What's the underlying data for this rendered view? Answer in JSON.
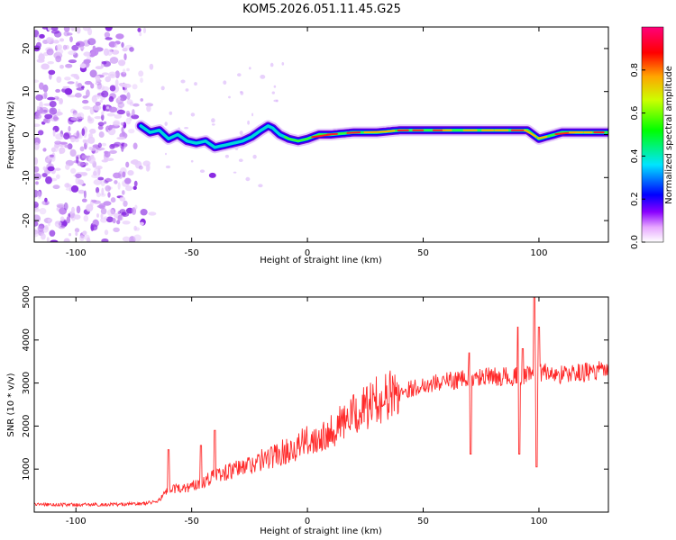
{
  "title": "KOM5.2026.051.11.45.G25",
  "chart_data": [
    {
      "type": "heatmap",
      "name": "spectrogram",
      "xlabel": "Height of straight line (km)",
      "ylabel": "Frequency (Hz)",
      "xlim": [
        -118,
        130
      ],
      "ylim": [
        -25,
        25
      ],
      "xticks": [
        -100,
        -50,
        0,
        50,
        100
      ],
      "yticks": [
        -20,
        -10,
        0,
        10,
        20
      ],
      "colorbar": {
        "label": "Normalized spectral amplitude",
        "range": [
          0,
          1
        ],
        "ticks": [
          0.0,
          0.2,
          0.4,
          0.6,
          0.8
        ]
      },
      "ridge": {
        "description": "dominant frequency ridge",
        "x": [
          -72,
          -68,
          -64,
          -60,
          -56,
          -52,
          -48,
          -44,
          -40,
          -36,
          -32,
          -28,
          -24,
          -20,
          -17,
          -15,
          -12,
          -8,
          -4,
          0,
          5,
          10,
          20,
          30,
          40,
          50,
          60,
          70,
          80,
          90,
          95,
          100,
          110,
          120,
          130
        ],
        "y": [
          2.0,
          0.5,
          1.0,
          -1.0,
          0.0,
          -1.5,
          -2.0,
          -1.5,
          -3.0,
          -2.5,
          -2.0,
          -1.5,
          -0.5,
          1.0,
          2.0,
          1.5,
          0.0,
          -1.0,
          -1.5,
          -1.0,
          0.0,
          0.0,
          0.5,
          0.5,
          1.0,
          1.0,
          1.0,
          1.0,
          1.0,
          1.0,
          1.0,
          -1.0,
          0.5,
          0.5,
          0.5
        ]
      },
      "noise_region": [
        -118,
        -65
      ]
    },
    {
      "type": "line",
      "name": "snr",
      "xlabel": "Height of straight line (km)",
      "ylabel": "SNR (10 * v/v)",
      "xlim": [
        -118,
        130
      ],
      "ylim": [
        0,
        5000
      ],
      "xticks": [
        -100,
        -50,
        0,
        50,
        100
      ],
      "yticks": [
        1000,
        2000,
        3000,
        4000,
        5000
      ],
      "color": "#ff2a2a",
      "trend": {
        "x": [
          -118,
          -100,
          -80,
          -70,
          -65,
          -60,
          -50,
          -40,
          -30,
          -20,
          -10,
          0,
          10,
          20,
          30,
          40,
          50,
          60,
          70,
          80,
          90,
          100,
          110,
          120,
          130
        ],
        "y": [
          180,
          170,
          180,
          200,
          250,
          500,
          600,
          850,
          1000,
          1200,
          1400,
          1650,
          1900,
          2250,
          2600,
          2800,
          2950,
          3050,
          3100,
          3150,
          3150,
          3250,
          3200,
          3250,
          3300
        ]
      },
      "spikes": [
        {
          "x": -60,
          "y": 1450
        },
        {
          "x": -46,
          "y": 1550
        },
        {
          "x": -40,
          "y": 1900
        },
        {
          "x": 70,
          "y": 3700
        },
        {
          "x": 70.5,
          "y": 1350
        },
        {
          "x": 91,
          "y": 4300
        },
        {
          "x": 91.5,
          "y": 1350
        },
        {
          "x": 93,
          "y": 3800
        },
        {
          "x": 98,
          "y": 5000
        },
        {
          "x": 99,
          "y": 1050
        },
        {
          "x": 100,
          "y": 4300
        }
      ]
    }
  ]
}
